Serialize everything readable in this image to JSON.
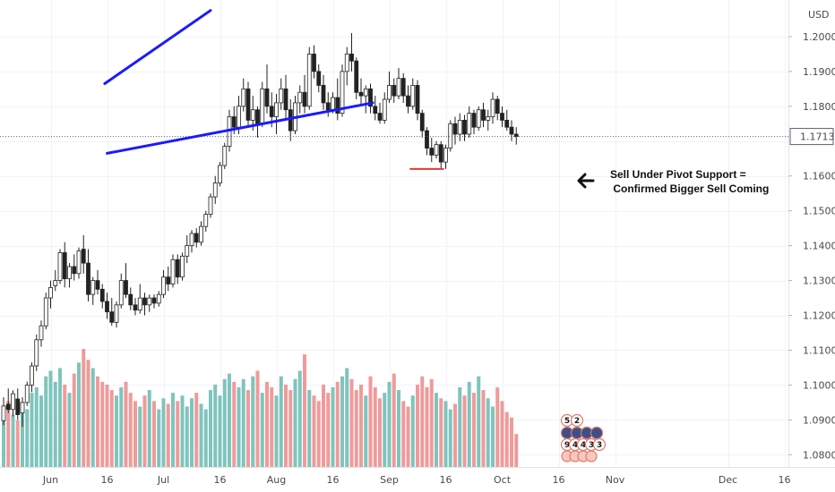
{
  "chart_data": {
    "type": "candlestick",
    "currency": "USD",
    "y_ticks": [
      "1.20000",
      "1.19000",
      "1.18000",
      "1.17000",
      "1.16000",
      "1.15000",
      "1.14000",
      "1.13000",
      "1.12000",
      "1.11000",
      "1.10000",
      "1.09000",
      "1.08000"
    ],
    "y_tick_values": [
      1.2,
      1.19,
      1.18,
      1.17,
      1.16,
      1.15,
      1.14,
      1.13,
      1.12,
      1.11,
      1.1,
      1.09,
      1.08
    ],
    "ylim": [
      1.0765,
      1.2105
    ],
    "current_price": "1.17133",
    "current_price_value": 1.17133,
    "x_ticks": [
      "Jun",
      "16",
      "Jul",
      "16",
      "Aug",
      "16",
      "Sep",
      "16",
      "Oct",
      "16",
      "Nov",
      "Dec",
      "16"
    ],
    "x_tick_bars": [
      0,
      12,
      24,
      36,
      48,
      60,
      72,
      84,
      96,
      108,
      120,
      144,
      156
    ],
    "candles": [
      [
        1.0898,
        1.0965,
        1.0885,
        1.094
      ],
      [
        1.0945,
        1.099,
        1.092,
        1.093
      ],
      [
        1.093,
        1.0985,
        1.091,
        1.0975
      ],
      [
        1.096,
        1.099,
        1.09,
        1.0915
      ],
      [
        1.092,
        1.0965,
        1.088,
        1.095
      ],
      [
        1.095,
        1.101,
        1.094,
        1.1
      ],
      [
        1.1,
        1.1065,
        1.098,
        1.1055
      ],
      [
        1.1055,
        1.1145,
        1.104,
        1.113
      ],
      [
        1.113,
        1.1185,
        1.111,
        1.117
      ],
      [
        1.117,
        1.1265,
        1.116,
        1.125
      ],
      [
        1.125,
        1.13,
        1.122,
        1.128
      ],
      [
        1.1285,
        1.133,
        1.127,
        1.13
      ],
      [
        1.13,
        1.139,
        1.129,
        1.138
      ],
      [
        1.138,
        1.141,
        1.128,
        1.1305
      ],
      [
        1.1305,
        1.135,
        1.128,
        1.134
      ],
      [
        1.134,
        1.1375,
        1.13,
        1.132
      ],
      [
        1.132,
        1.1395,
        1.1305,
        1.1385
      ],
      [
        1.139,
        1.143,
        1.132,
        1.135
      ],
      [
        1.135,
        1.139,
        1.124,
        1.126
      ],
      [
        1.126,
        1.131,
        1.123,
        1.13
      ],
      [
        1.13,
        1.133,
        1.126,
        1.1275
      ],
      [
        1.1275,
        1.129,
        1.122,
        1.124
      ],
      [
        1.124,
        1.1265,
        1.119,
        1.121
      ],
      [
        1.121,
        1.125,
        1.117,
        1.118
      ],
      [
        1.118,
        1.124,
        1.1165,
        1.123
      ],
      [
        1.123,
        1.132,
        1.122,
        1.13
      ],
      [
        1.13,
        1.135,
        1.125,
        1.126
      ],
      [
        1.126,
        1.128,
        1.1215,
        1.123
      ],
      [
        1.123,
        1.125,
        1.12,
        1.1215
      ],
      [
        1.1215,
        1.129,
        1.1205,
        1.125
      ],
      [
        1.125,
        1.1265,
        1.12,
        1.123
      ],
      [
        1.123,
        1.126,
        1.121,
        1.125
      ],
      [
        1.125,
        1.126,
        1.122,
        1.1235
      ],
      [
        1.1235,
        1.127,
        1.1225,
        1.126
      ],
      [
        1.126,
        1.133,
        1.125,
        1.131
      ],
      [
        1.131,
        1.134,
        1.127,
        1.129
      ],
      [
        1.129,
        1.1375,
        1.128,
        1.136
      ],
      [
        1.136,
        1.1375,
        1.129,
        1.131
      ],
      [
        1.131,
        1.138,
        1.13,
        1.137
      ],
      [
        1.137,
        1.143,
        1.135,
        1.14
      ],
      [
        1.14,
        1.1445,
        1.138,
        1.1435
      ],
      [
        1.1435,
        1.145,
        1.1395,
        1.141
      ],
      [
        1.141,
        1.147,
        1.14,
        1.1455
      ],
      [
        1.1455,
        1.15,
        1.144,
        1.149
      ],
      [
        1.149,
        1.155,
        1.148,
        1.154
      ],
      [
        1.154,
        1.16,
        1.152,
        1.158
      ],
      [
        1.158,
        1.164,
        1.157,
        1.163
      ],
      [
        1.163,
        1.1695,
        1.162,
        1.1685
      ],
      [
        1.1685,
        1.179,
        1.167,
        1.177
      ],
      [
        1.177,
        1.18,
        1.172,
        1.174
      ],
      [
        1.174,
        1.183,
        1.172,
        1.18
      ],
      [
        1.18,
        1.188,
        1.1785,
        1.185
      ],
      [
        1.185,
        1.187,
        1.174,
        1.176
      ],
      [
        1.176,
        1.183,
        1.173,
        1.179
      ],
      [
        1.179,
        1.18,
        1.171,
        1.175
      ],
      [
        1.175,
        1.187,
        1.174,
        1.185
      ],
      [
        1.185,
        1.192,
        1.178,
        1.18
      ],
      [
        1.18,
        1.184,
        1.174,
        1.177
      ],
      [
        1.177,
        1.1835,
        1.172,
        1.181
      ],
      [
        1.181,
        1.188,
        1.179,
        1.185
      ],
      [
        1.185,
        1.189,
        1.176,
        1.179
      ],
      [
        1.179,
        1.182,
        1.17,
        1.173
      ],
      [
        1.173,
        1.183,
        1.172,
        1.181
      ],
      [
        1.181,
        1.186,
        1.178,
        1.184
      ],
      [
        1.184,
        1.189,
        1.178,
        1.18
      ],
      [
        1.18,
        1.197,
        1.179,
        1.195
      ],
      [
        1.195,
        1.1975,
        1.188,
        1.19
      ],
      [
        1.19,
        1.192,
        1.184,
        1.186
      ],
      [
        1.186,
        1.189,
        1.179,
        1.181
      ],
      [
        1.181,
        1.184,
        1.177,
        1.179
      ],
      [
        1.179,
        1.184,
        1.178,
        1.1825
      ],
      [
        1.1825,
        1.188,
        1.176,
        1.178
      ],
      [
        1.178,
        1.192,
        1.177,
        1.19
      ],
      [
        1.19,
        1.197,
        1.186,
        1.195
      ],
      [
        1.195,
        1.201,
        1.19,
        1.193
      ],
      [
        1.193,
        1.194,
        1.182,
        1.184
      ],
      [
        1.184,
        1.188,
        1.18,
        1.183
      ],
      [
        1.183,
        1.186,
        1.178,
        1.185
      ],
      [
        1.185,
        1.1865,
        1.178,
        1.18
      ],
      [
        1.18,
        1.183,
        1.176,
        1.178
      ],
      [
        1.178,
        1.181,
        1.175,
        1.176
      ],
      [
        1.176,
        1.184,
        1.175,
        1.182
      ],
      [
        1.182,
        1.19,
        1.181,
        1.186
      ],
      [
        1.186,
        1.188,
        1.181,
        1.183
      ],
      [
        1.183,
        1.191,
        1.182,
        1.188
      ],
      [
        1.188,
        1.1895,
        1.181,
        1.183
      ],
      [
        1.183,
        1.186,
        1.178,
        1.18
      ],
      [
        1.18,
        1.188,
        1.179,
        1.186
      ],
      [
        1.186,
        1.1875,
        1.176,
        1.178
      ],
      [
        1.178,
        1.179,
        1.171,
        1.173
      ],
      [
        1.173,
        1.174,
        1.166,
        1.168
      ],
      [
        1.168,
        1.171,
        1.164,
        1.166
      ],
      [
        1.166,
        1.17,
        1.165,
        1.169
      ],
      [
        1.169,
        1.17,
        1.162,
        1.164
      ],
      [
        1.164,
        1.169,
        1.162,
        1.168
      ],
      [
        1.168,
        1.176,
        1.167,
        1.175
      ],
      [
        1.175,
        1.177,
        1.169,
        1.172
      ],
      [
        1.172,
        1.178,
        1.17,
        1.176
      ],
      [
        1.176,
        1.1775,
        1.17,
        1.172
      ],
      [
        1.172,
        1.18,
        1.171,
        1.178
      ],
      [
        1.178,
        1.179,
        1.172,
        1.174
      ],
      [
        1.174,
        1.18,
        1.173,
        1.179
      ],
      [
        1.179,
        1.181,
        1.174,
        1.176
      ],
      [
        1.176,
        1.179,
        1.173,
        1.177
      ],
      [
        1.177,
        1.184,
        1.175,
        1.182
      ],
      [
        1.182,
        1.183,
        1.176,
        1.178
      ],
      [
        1.178,
        1.18,
        1.174,
        1.176
      ],
      [
        1.176,
        1.179,
        1.173,
        1.174
      ],
      [
        1.174,
        1.176,
        1.17,
        1.172
      ],
      [
        1.172,
        1.174,
        1.169,
        1.1713
      ]
    ],
    "volumes": [
      20,
      24,
      19,
      17,
      23,
      21,
      27,
      29,
      26,
      33,
      35,
      31,
      36,
      30,
      27,
      34,
      38,
      43,
      39,
      36,
      33,
      31,
      30,
      28,
      26,
      29,
      31,
      27,
      24,
      22,
      26,
      28,
      24,
      21,
      25,
      23,
      27,
      24,
      26,
      22,
      25,
      27,
      23,
      21,
      28,
      30,
      26,
      32,
      34,
      31,
      29,
      32,
      28,
      33,
      35,
      27,
      31,
      29,
      26,
      33,
      30,
      28,
      32,
      35,
      41,
      28,
      26,
      24,
      30,
      27,
      29,
      31,
      33,
      36,
      32,
      28,
      30,
      26,
      33,
      29,
      25,
      27,
      31,
      34,
      28,
      24,
      22,
      26,
      30,
      33,
      29,
      32,
      27,
      25,
      24,
      21,
      23,
      29,
      26,
      31,
      27,
      33,
      28,
      25,
      22,
      29,
      24,
      20,
      18,
      12
    ],
    "volume_max": 43,
    "trendlines": [
      {
        "label": "upper channel",
        "color": "#1a1aff",
        "p1": [
          21.5,
          1.1865
        ],
        "p2": [
          44.0,
          1.2075
        ]
      },
      {
        "label": "lower channel",
        "color": "#1a1aff",
        "p1": [
          22.0,
          1.1665
        ],
        "p2": [
          78.5,
          1.181
        ]
      },
      {
        "label": "pivot support",
        "color": "#e53935",
        "p1": [
          86.5,
          1.162
        ],
        "p2": [
          93.5,
          1.162
        ]
      }
    ],
    "annotation": {
      "line1": "Sell Under Pivot Support =",
      "line2": " Confirmed Bigger Sell Coming"
    },
    "badges": {
      "row1": [
        "5",
        "2"
      ],
      "row2": [
        "9",
        "4",
        "4",
        "3",
        "3"
      ]
    },
    "colors": {
      "up": "#26a69a",
      "down": "#ef5350",
      "vol_up": "#7fc4bd",
      "vol_down": "#f09a9a",
      "grid": "#f0f3fa",
      "background": "#ffffff",
      "price_line": "#5a6070"
    }
  }
}
